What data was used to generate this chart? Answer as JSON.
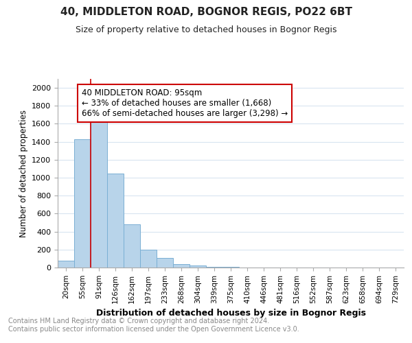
{
  "title1": "40, MIDDLETON ROAD, BOGNOR REGIS, PO22 6BT",
  "title2": "Size of property relative to detached houses in Bognor Regis",
  "xlabel": "Distribution of detached houses by size in Bognor Regis",
  "ylabel": "Number of detached properties",
  "categories": [
    "20sqm",
    "55sqm",
    "91sqm",
    "126sqm",
    "162sqm",
    "197sqm",
    "233sqm",
    "268sqm",
    "304sqm",
    "339sqm",
    "375sqm",
    "410sqm",
    "446sqm",
    "481sqm",
    "516sqm",
    "552sqm",
    "587sqm",
    "623sqm",
    "658sqm",
    "694sqm",
    "729sqm"
  ],
  "values": [
    80,
    1425,
    1620,
    1050,
    480,
    200,
    105,
    35,
    20,
    8,
    5,
    0,
    0,
    0,
    0,
    0,
    0,
    0,
    0,
    0,
    0
  ],
  "bar_color": "#b8d4ea",
  "bar_edge_color": "#7aafd4",
  "annotation_box_color": "#cc0000",
  "annotation_line1": "40 MIDDLETON ROAD: 95sqm",
  "annotation_line2": "← 33% of detached houses are smaller (1,668)",
  "annotation_line3": "66% of semi-detached houses are larger (3,298) →",
  "property_line_x": 2,
  "ylim": [
    0,
    2100
  ],
  "yticks": [
    0,
    200,
    400,
    600,
    800,
    1000,
    1200,
    1400,
    1600,
    1800,
    2000
  ],
  "footer": "Contains HM Land Registry data © Crown copyright and database right 2024.\nContains public sector information licensed under the Open Government Licence v3.0.",
  "bg_color": "#ffffff",
  "grid_color": "#d8e4f0"
}
